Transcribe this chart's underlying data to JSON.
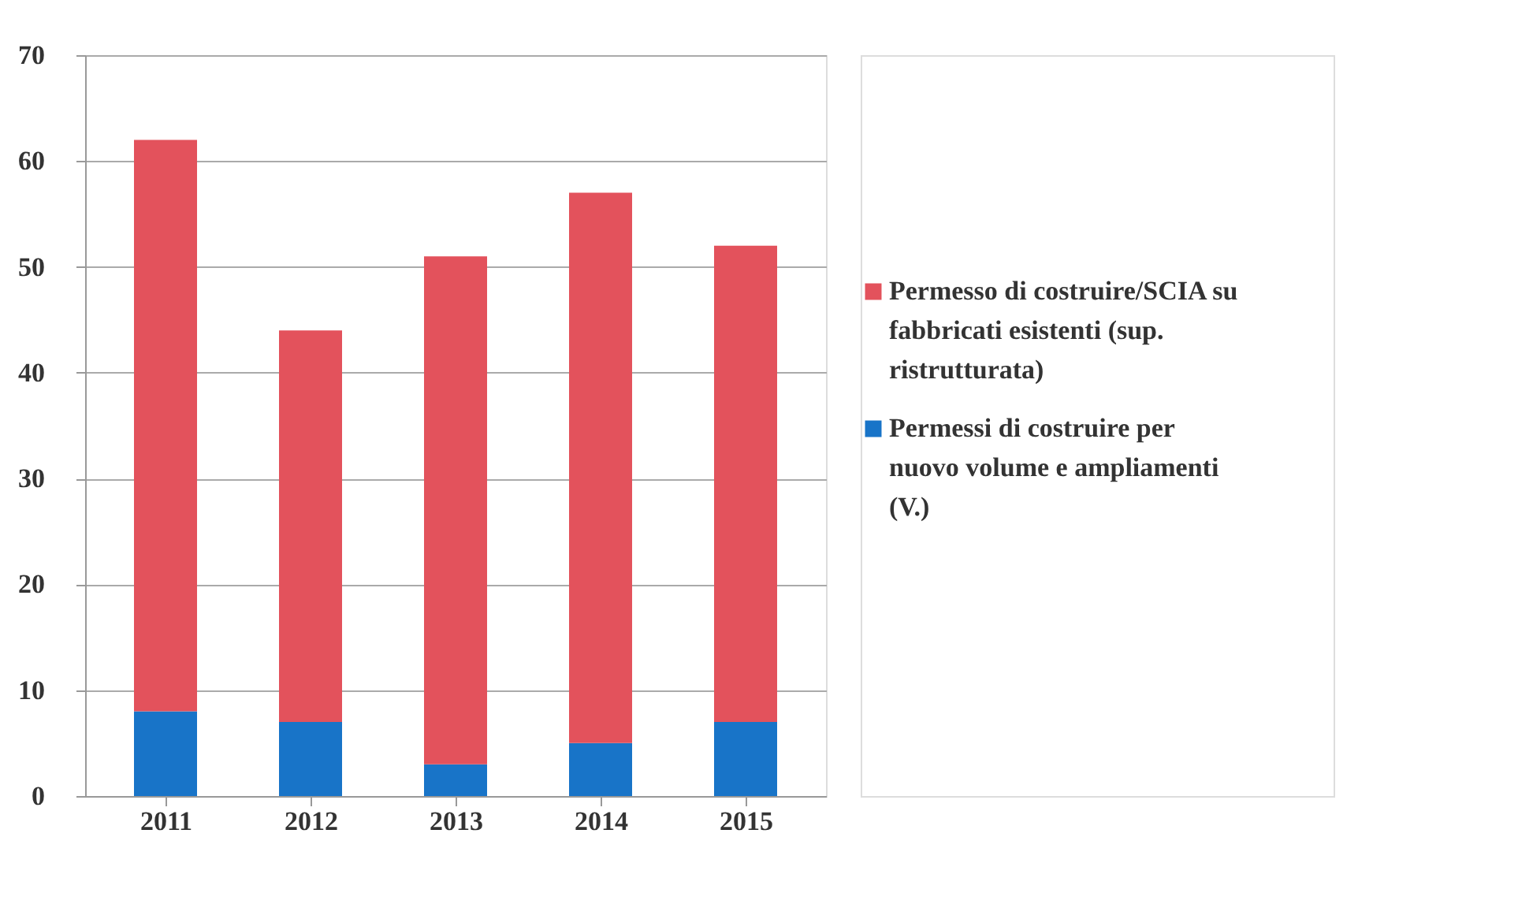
{
  "chart_data": {
    "type": "bar",
    "stacked": true,
    "categories": [
      "2011",
      "2012",
      "2013",
      "2014",
      "2015"
    ],
    "series": [
      {
        "name": "Permessi di costruire per nuovo volume e ampliamenti (V.)",
        "color": "#1874c8",
        "values": [
          8,
          7,
          3,
          5,
          7
        ]
      },
      {
        "name": "Permesso di costruire/SCIA su fabbricati esistenti (sup. ristrutturata)",
        "color": "#e3525c",
        "values": [
          54,
          37,
          48,
          52,
          45
        ]
      }
    ],
    "ylim": [
      0,
      70
    ],
    "yticks": [
      0,
      10,
      20,
      30,
      40,
      50,
      60,
      70
    ],
    "grid": "y",
    "legend": "right"
  }
}
